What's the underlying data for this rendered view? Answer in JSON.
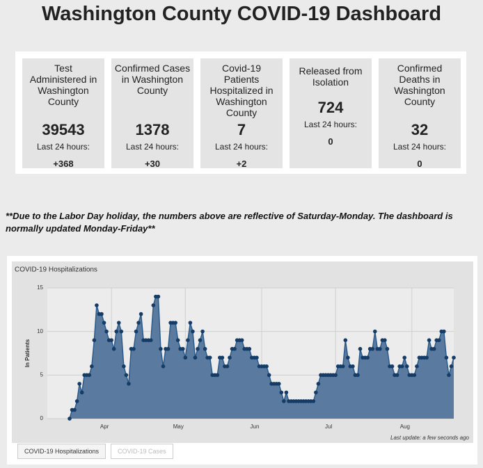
{
  "header": {
    "title": "Washington County COVID-19 Dashboard"
  },
  "cards": [
    {
      "title": "Test Administered in Washington County",
      "value": 39543,
      "sublabel": "Last 24 hours:",
      "change": "+368"
    },
    {
      "title": "Confirmed Cases in Washington County",
      "value": 1378,
      "sublabel": "Last 24 hours:",
      "change": "+30"
    },
    {
      "title": "Covid-19 Patients Hospitalized in Washington County",
      "value": 7,
      "sublabel": "Last 24 hours:",
      "change": "+2"
    },
    {
      "title": "Released from Isolation",
      "value": 724,
      "sublabel": "Last 24 hours:",
      "change": 0
    },
    {
      "title": "Confirmed Deaths in Washington County",
      "value": 32,
      "sublabel": "Last 24 hours:",
      "change": 0
    }
  ],
  "note": "**Due to the Labor Day holiday, the numbers above are reflective of Saturday-Monday.  The dashboard is normally updated Monday-Friday**",
  "tabs": [
    "COVID-19 Hospitalizations",
    "COVID-19 Cases"
  ],
  "chart_data": {
    "type": "area",
    "title": "COVID-19 Hospitalizations",
    "y_label": "In Patients",
    "footnote": "Last update: a few seconds ago",
    "color": "#2b5a8a",
    "fill": "#5a7b9f",
    "marker_color": "#153c66",
    "grid": true,
    "ylim": [
      0,
      15
    ],
    "yticks": [
      0,
      5,
      10,
      15
    ],
    "categories": [
      null,
      null,
      null,
      null,
      null,
      null,
      null,
      null,
      null,
      null,
      null,
      null,
      null,
      null,
      null,
      null,
      null,
      "Apr",
      null,
      null,
      null,
      null,
      null,
      null,
      null,
      null,
      null,
      null,
      null,
      null,
      null,
      null,
      null,
      null,
      null,
      null,
      null,
      null,
      null,
      null,
      null,
      null,
      null,
      null,
      null,
      null,
      null,
      "May",
      null,
      null,
      null,
      null,
      null,
      null,
      null,
      null,
      null,
      null,
      null,
      null,
      null,
      null,
      null,
      null,
      null,
      null,
      null,
      null,
      null,
      null,
      null,
      null,
      null,
      null,
      null,
      null,
      null,
      null,
      "Jun",
      null,
      null,
      null,
      null,
      null,
      null,
      null,
      null,
      null,
      null,
      null,
      null,
      null,
      null,
      null,
      null,
      null,
      null,
      null,
      null,
      null,
      null,
      null,
      null,
      null,
      null,
      null,
      null,
      null,
      "Jul",
      null,
      null,
      null,
      null,
      null,
      null,
      null,
      null,
      null,
      null,
      null,
      null,
      null,
      null,
      null,
      null,
      null,
      null,
      null,
      null,
      null,
      null,
      null,
      null,
      null,
      null,
      null,
      null,
      null,
      null,
      "Aug",
      null,
      null,
      null,
      null,
      null,
      null,
      null,
      null,
      null,
      null,
      null,
      null,
      null,
      null,
      null,
      null,
      null
    ],
    "values": [
      0,
      1,
      1,
      2,
      4,
      3,
      5,
      5,
      5,
      6,
      9,
      13,
      12,
      12,
      11,
      10,
      9,
      9,
      8,
      10,
      11,
      10,
      6,
      5,
      4,
      8,
      8,
      10,
      11,
      12,
      9,
      9,
      9,
      9,
      13,
      14,
      14,
      8,
      6,
      8,
      8,
      11,
      11,
      11,
      9,
      8,
      8,
      7,
      9,
      11,
      10,
      7,
      8,
      9,
      10,
      8,
      7,
      7,
      5,
      5,
      5,
      7,
      7,
      6,
      6,
      7,
      8,
      8,
      9,
      9,
      9,
      8,
      8,
      8,
      7,
      7,
      7,
      6,
      6,
      6,
      6,
      5,
      4,
      4,
      4,
      4,
      3,
      2,
      3,
      2,
      2,
      2,
      2,
      2,
      2,
      2,
      2,
      2,
      2,
      2,
      3,
      4,
      5,
      5,
      5,
      5,
      5,
      5,
      5,
      6,
      6,
      6,
      9,
      7,
      6,
      6,
      5,
      5,
      8,
      7,
      7,
      7,
      8,
      8,
      10,
      8,
      8,
      9,
      9,
      8,
      6,
      6,
      5,
      5,
      6,
      6,
      7,
      6,
      5,
      5,
      5,
      6,
      7,
      7,
      7,
      7,
      9,
      8,
      8,
      9,
      9,
      10,
      10,
      7,
      5,
      6,
      7
    ]
  }
}
